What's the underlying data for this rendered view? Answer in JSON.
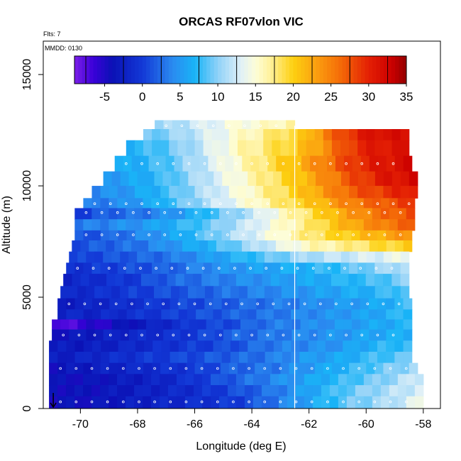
{
  "chart_data": {
    "type": "heatmap",
    "title": "ORCAS RF07vlon VIC",
    "annotations": [
      "Flts: 7",
      "MMDD: 0130"
    ],
    "xlabel": "Longitude (deg E)",
    "ylabel": "Altitude (m)",
    "xlim": [
      -71.3,
      -57.4
    ],
    "ylim": [
      0,
      16500
    ],
    "x_ticks": [
      -70,
      -68,
      -66,
      -64,
      -62,
      -60,
      -58
    ],
    "y_ticks": [
      0,
      5000,
      10000,
      15000
    ],
    "colorbar": {
      "range": [
        -9,
        35
      ],
      "ticks": [
        -5,
        0,
        5,
        10,
        15,
        20,
        25,
        30,
        35
      ],
      "stops": [
        {
          "v": -9,
          "c": "#7b1fe8"
        },
        {
          "v": -6.5,
          "c": "#3a00d8"
        },
        {
          "v": -4,
          "c": "#0b11b5"
        },
        {
          "v": 0,
          "c": "#1238d6"
        },
        {
          "v": 4,
          "c": "#2a8af0"
        },
        {
          "v": 7,
          "c": "#19b4f7"
        },
        {
          "v": 10,
          "c": "#8fd1f8"
        },
        {
          "v": 13,
          "c": "#dff0f8"
        },
        {
          "v": 15,
          "c": "#fdfdd8"
        },
        {
          "v": 17,
          "c": "#fff19a"
        },
        {
          "v": 20,
          "c": "#fdd010"
        },
        {
          "v": 23,
          "c": "#fba010"
        },
        {
          "v": 26,
          "c": "#f57008"
        },
        {
          "v": 30,
          "c": "#e42004"
        },
        {
          "v": 33,
          "c": "#cc0000"
        },
        {
          "v": 35,
          "c": "#930000"
        }
      ]
    },
    "reference_line_x": -62.5,
    "marker_x": -70.95,
    "profile_rows": [
      {
        "alt": 12700,
        "x0": -67.4,
        "x1": -62.5,
        "values": [
          10,
          11,
          12,
          13,
          14,
          15,
          15,
          16,
          17
        ]
      },
      {
        "alt": 12400,
        "x0": -67.8,
        "x1": -58.5,
        "values": [
          9,
          10,
          12,
          14,
          16,
          18,
          20,
          26,
          30,
          32,
          31
        ]
      },
      {
        "alt": 11700,
        "x0": -68.4,
        "x1": -58.5,
        "values": [
          7,
          8,
          10,
          13,
          16,
          18,
          20,
          24,
          29,
          31,
          31
        ]
      },
      {
        "alt": 11000,
        "x0": -68.8,
        "x1": -58.4,
        "values": [
          6,
          7,
          9,
          12,
          15,
          18,
          21,
          25,
          29,
          31,
          32
        ]
      },
      {
        "alt": 10300,
        "x0": -69.2,
        "x1": -58.2,
        "values": [
          5,
          6,
          8,
          11,
          14,
          17,
          20,
          24,
          28,
          31,
          32
        ]
      },
      {
        "alt": 9700,
        "x0": -69.6,
        "x1": -58.2,
        "values": [
          4,
          5,
          7,
          10,
          13,
          16,
          19,
          23,
          27,
          29,
          31
        ]
      },
      {
        "alt": 9200,
        "x0": -69.9,
        "x1": -58.3,
        "values": [
          3,
          4,
          6,
          9,
          12,
          15,
          18,
          21,
          25,
          27,
          29
        ]
      },
      {
        "alt": 8800,
        "x0": -70.2,
        "x1": -58.3,
        "values": [
          0,
          2,
          3,
          5,
          8,
          11,
          15,
          19,
          23,
          26,
          28
        ]
      },
      {
        "alt": 8200,
        "x0": -70.2,
        "x1": -58.3,
        "values": [
          3,
          4,
          5,
          7,
          9,
          12,
          15,
          18,
          22,
          25,
          27
        ]
      },
      {
        "alt": 7800,
        "x0": -70.2,
        "x1": -58.4,
        "values": [
          1,
          2,
          4,
          6,
          9,
          12,
          15,
          18,
          20,
          22,
          24
        ]
      },
      {
        "alt": 7300,
        "x0": -70.3,
        "x1": -58.4,
        "values": [
          1,
          2,
          3,
          5,
          7,
          10,
          13,
          16,
          17,
          19,
          20
        ]
      },
      {
        "alt": 6800,
        "x0": -70.4,
        "x1": -58.5,
        "values": [
          0,
          1,
          2,
          3,
          5,
          7,
          9,
          11,
          12,
          13,
          14
        ]
      },
      {
        "alt": 6300,
        "x0": -70.5,
        "x1": -58.5,
        "values": [
          -1,
          0,
          1,
          2,
          4,
          5,
          6,
          7,
          8,
          10,
          12
        ]
      },
      {
        "alt": 5800,
        "x0": -70.6,
        "x1": -58.5,
        "values": [
          -2,
          -1,
          0,
          2,
          3,
          4,
          5,
          6,
          7,
          8,
          10
        ]
      },
      {
        "alt": 5200,
        "x0": -70.7,
        "x1": -58.5,
        "values": [
          -2,
          -1,
          0,
          1,
          2,
          3,
          4,
          5,
          6,
          7,
          9
        ]
      },
      {
        "alt": 4700,
        "x0": -70.8,
        "x1": -58.4,
        "values": [
          -3,
          -2,
          -1,
          0,
          1,
          2,
          3,
          4,
          5,
          6,
          8
        ]
      },
      {
        "alt": 4200,
        "x0": -70.8,
        "x1": -58.4,
        "values": [
          -2,
          -2,
          -1,
          0,
          1,
          2,
          3,
          4,
          5,
          6,
          8
        ]
      },
      {
        "alt": 3800,
        "x0": -71.0,
        "x1": -58.4,
        "values": [
          -8,
          -6,
          -4,
          -2,
          0,
          1,
          3,
          4,
          5,
          6,
          7
        ]
      },
      {
        "alt": 3300,
        "x0": -71.0,
        "x1": -58.4,
        "values": [
          -4,
          -3,
          -2,
          -1,
          0,
          2,
          3,
          4,
          5,
          6,
          7
        ]
      },
      {
        "alt": 2800,
        "x0": -71.1,
        "x1": -58.4,
        "values": [
          -3,
          -3,
          -2,
          -1,
          0,
          1,
          3,
          4,
          5,
          7,
          8
        ]
      },
      {
        "alt": 2300,
        "x0": -71.1,
        "x1": -58.4,
        "values": [
          -3,
          -2,
          -1,
          0,
          1,
          2,
          3,
          5,
          6,
          8,
          9
        ]
      },
      {
        "alt": 1800,
        "x0": -71.1,
        "x1": -58.2,
        "values": [
          -4,
          -3,
          -2,
          -1,
          0,
          2,
          3,
          5,
          7,
          9,
          11
        ]
      },
      {
        "alt": 1300,
        "x0": -71.1,
        "x1": -58.0,
        "values": [
          -4,
          -4,
          -3,
          -2,
          0,
          2,
          4,
          6,
          8,
          10,
          13
        ]
      },
      {
        "alt": 800,
        "x0": -71.1,
        "x1": -58.0,
        "values": [
          -4,
          -4,
          -3,
          -2,
          -1,
          1,
          3,
          6,
          9,
          11,
          13
        ]
      },
      {
        "alt": 300,
        "x0": -71.1,
        "x1": -58.0,
        "values": [
          -4,
          -4,
          -3,
          -2,
          -1,
          0,
          3,
          6,
          9,
          11,
          14
        ]
      }
    ]
  }
}
